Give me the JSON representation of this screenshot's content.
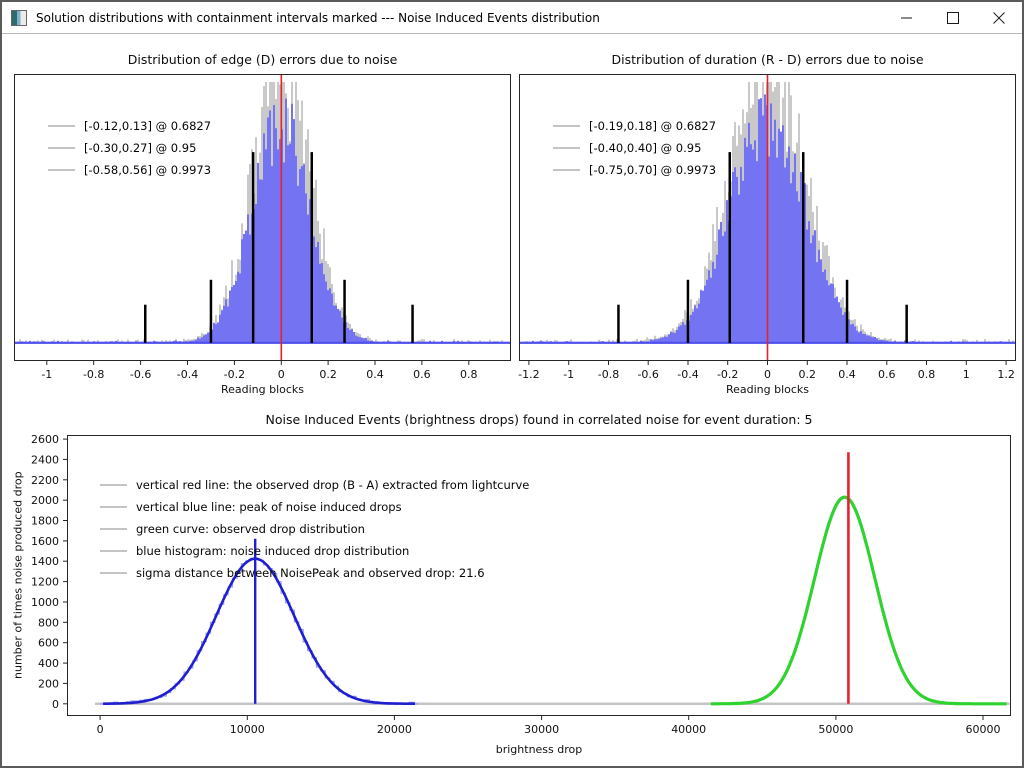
{
  "window": {
    "title": "Solution distributions with containment intervals marked --- Noise Induced Events distribution"
  },
  "chart_data": [
    {
      "type": "bar",
      "subtype": "noise-error-histogram",
      "title": "Distribution of edge (D) errors due to noise",
      "xlabel": "Reading blocks",
      "xlim": [
        -1.14,
        0.98
      ],
      "xticks": [
        -1,
        -0.8,
        -0.6,
        -0.4,
        -0.2,
        0,
        0.2,
        0.4,
        0.6,
        0.8
      ],
      "grid": false,
      "hist": {
        "center": 0,
        "sigma": 0.125,
        "peak_frac": 0.784,
        "fill_color": "#7474f3",
        "outline_color": "#c9c9c9",
        "noise_seed": 424242
      },
      "baseline_frac": 0.937,
      "red_vline_x": 0,
      "containment_intervals": [
        {
          "range": [
            -0.12,
            0.13
          ],
          "probability": 0.6827,
          "marker_height_frac": 0.665
        },
        {
          "range": [
            -0.3,
            0.27
          ],
          "probability": 0.95,
          "marker_height_frac": 0.22
        },
        {
          "range": [
            -0.58,
            0.56
          ],
          "probability": 0.9973,
          "marker_height_frac": 0.133
        }
      ],
      "legend": [
        "[-0.12,0.13] @ 0.6827",
        "[-0.30,0.27] @ 0.95",
        "[-0.58,0.56] @ 0.9973"
      ],
      "colors": {
        "red_line": "#e8212e",
        "marker_line": "#000000",
        "baseline": "#5050ee"
      }
    },
    {
      "type": "bar",
      "subtype": "noise-error-histogram",
      "title": "Distribution of duration (R - D) errors due to noise",
      "xlabel": "Reading blocks",
      "xlim": [
        -1.25,
        1.25
      ],
      "xticks": [
        -1.2,
        -1,
        -0.8,
        -0.6,
        -0.4,
        -0.2,
        0,
        0.2,
        0.4,
        0.6,
        0.8,
        1,
        1.2
      ],
      "grid": false,
      "hist": {
        "center": 0,
        "sigma": 0.19,
        "peak_frac": 0.8,
        "fill_color": "#7474f3",
        "outline_color": "#c9c9c9",
        "noise_seed": 987654
      },
      "baseline_frac": 0.937,
      "red_vline_x": 0,
      "containment_intervals": [
        {
          "range": [
            -0.19,
            0.18
          ],
          "probability": 0.6827,
          "marker_height_frac": 0.665
        },
        {
          "range": [
            -0.4,
            0.4
          ],
          "probability": 0.95,
          "marker_height_frac": 0.22
        },
        {
          "range": [
            -0.75,
            0.7
          ],
          "probability": 0.9973,
          "marker_height_frac": 0.133
        }
      ],
      "legend": [
        "[-0.19,0.18] @ 0.6827",
        "[-0.40,0.40] @ 0.95",
        "[-0.75,0.70] @ 0.9973"
      ],
      "colors": {
        "red_line": "#e8212e",
        "marker_line": "#000000",
        "baseline": "#5050ee"
      }
    },
    {
      "type": "line",
      "subtype": "noise-induced-events",
      "title": "Noise Induced Events (brightness drops) found in correlated noise for event duration: 5",
      "xlabel": "brightness drop",
      "ylabel": "number of times noise produced drop",
      "xlim": [
        -2250,
        61900
      ],
      "ylim": [
        -120,
        2640
      ],
      "xticks": [
        0,
        10000,
        20000,
        30000,
        40000,
        50000,
        60000
      ],
      "yticks": [
        0,
        200,
        400,
        600,
        800,
        1000,
        1200,
        1400,
        1600,
        1800,
        2000,
        2200,
        2400,
        2600
      ],
      "grid": false,
      "series": [
        {
          "name": "noise induced drop distribution (histogram steps)",
          "style": "steps",
          "color": "#9b9bf2",
          "width": 1.2,
          "center": 10540,
          "sigma": 2650,
          "peak": 1425,
          "x_range": [
            0,
            21600
          ],
          "bin_width": 300,
          "noise_seed": 7777
        },
        {
          "name": "noise induced drop distribution (smooth)",
          "style": "line",
          "color": "#1f1fd0",
          "width": 2.6,
          "center": 10540,
          "sigma": 2650,
          "peak": 1425,
          "x_range": [
            200,
            21400
          ]
        },
        {
          "name": "observed drop distribution",
          "style": "line",
          "color": "#2fd32f",
          "width": 3.2,
          "center": 50600,
          "sigma": 2050,
          "peak": 2030,
          "x_range": [
            41500,
            61600
          ]
        }
      ],
      "gray_baseline": {
        "y": 0,
        "x_range": [
          -350,
          61800
        ],
        "color": "#c4c4c4",
        "width": 2.5
      },
      "blue_vline": {
        "x": 10540,
        "y_top": 1620,
        "color": "#1f1fd0",
        "width": 2.4
      },
      "red_vline": {
        "x": 50850,
        "y_top": 2470,
        "color": "#e8212e",
        "width": 2.6
      },
      "sigma_distance": 21.6,
      "legend": [
        "vertical red line: the observed drop (B - A) extracted from lightcurve",
        "vertical blue line: peak of noise induced drops",
        "green curve: observed drop distribution",
        "blue histogram: noise induced drop distribution",
        "sigma distance between NoisePeak and observed drop: 21.6"
      ]
    }
  ]
}
